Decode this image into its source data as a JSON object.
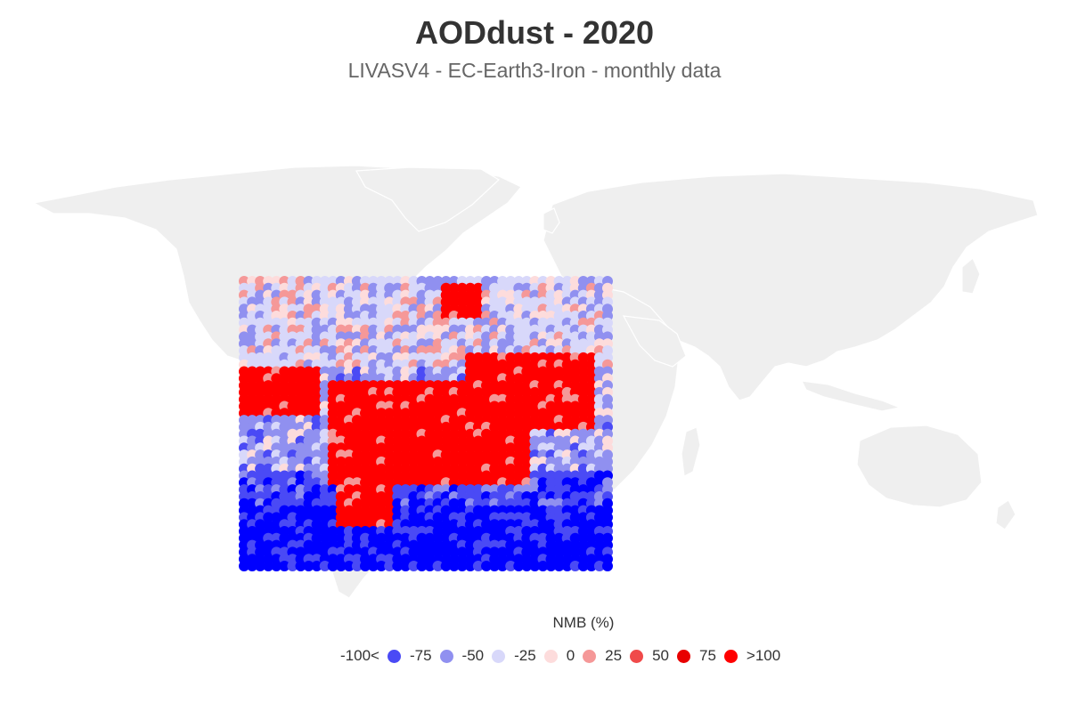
{
  "header": {
    "title": "AODdust - 2020",
    "subtitle": "LIVASV4 - EC-Earth3-Iron - monthly data"
  },
  "map": {
    "land_color": "#efefef",
    "border_color": "#ffffff",
    "variable": "AODdust",
    "year": "2020",
    "lon_range": [
      -20,
      60
    ],
    "lat_range": [
      0,
      65
    ]
  },
  "legend": {
    "title": "NMB (%)",
    "first_label": "-100<",
    "items": [
      {
        "color": "#4a4af5",
        "label": "-75"
      },
      {
        "color": "#9090f0",
        "label": "-50"
      },
      {
        "color": "#d8d8fa",
        "label": "-25"
      },
      {
        "color": "#fddcdc",
        "label": "0"
      },
      {
        "color": "#f59898",
        "label": "25"
      },
      {
        "color": "#f04a4a",
        "label": "50"
      },
      {
        "color": "#e80000",
        "label": "75"
      },
      {
        "color": "#ff0000",
        "label": ">100"
      }
    ]
  },
  "palette": [
    "#0000ff",
    "#4a4af5",
    "#9090f0",
    "#d8d8fa",
    "#fddcdc",
    "#f59898",
    "#f04a4a",
    "#ff0000"
  ]
}
